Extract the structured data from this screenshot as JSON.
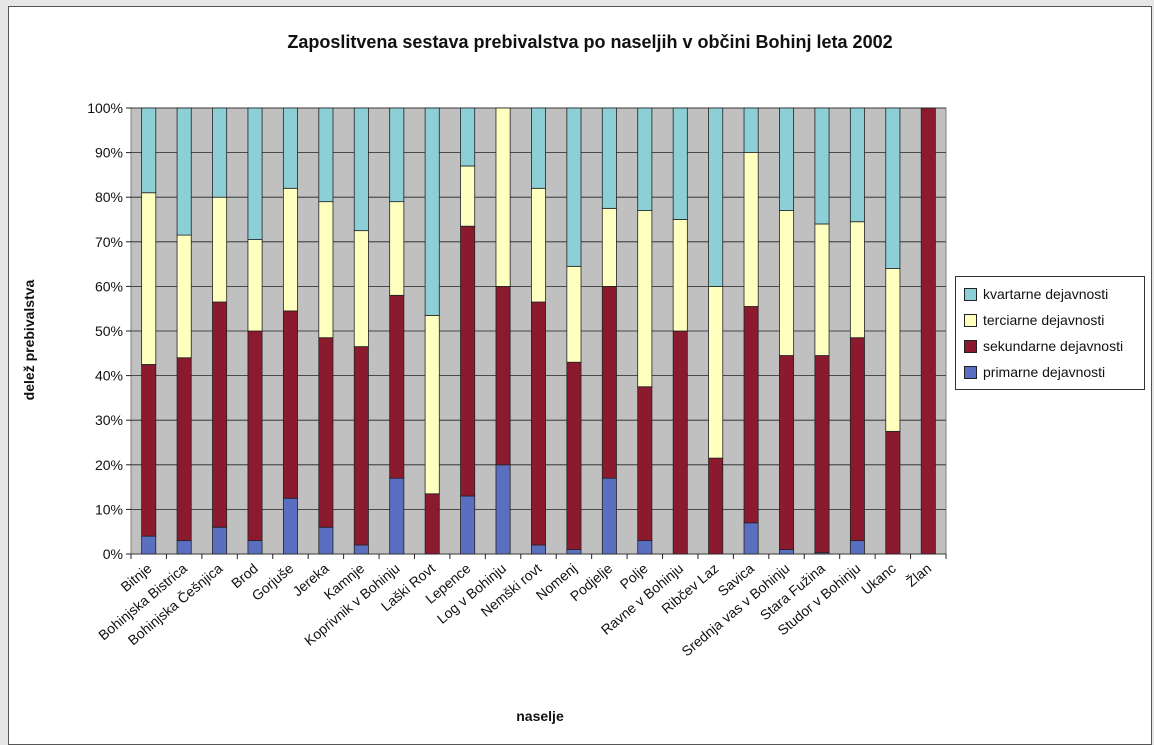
{
  "chart_data": {
    "type": "bar",
    "stacked": true,
    "percent_stacked": true,
    "title": "Zaposlitvena sestava prebivalstva po naseljih v občini Bohinj leta 2002",
    "xlabel": "naselje",
    "ylabel": "delež prebivalstva",
    "ylim": [
      0,
      100
    ],
    "yticks": [
      "0%",
      "10%",
      "20%",
      "30%",
      "40%",
      "50%",
      "60%",
      "70%",
      "80%",
      "90%",
      "100%"
    ],
    "grid": true,
    "legend_position": "right",
    "categories": [
      "Bitnje",
      "Bohinjska Bistrica",
      "Bohinjska Češnjica",
      "Brod",
      "Gorjuše",
      "Jereka",
      "Kamnje",
      "Koprivnik v Bohinju",
      "Laški Rovt",
      "Lepence",
      "Log v Bohinju",
      "Nemški rovt",
      "Nomenj",
      "Podjelje",
      "Polje",
      "Ravne v Bohinju",
      "Ribčev Laz",
      "Savica",
      "Srednja vas v Bohinju",
      "Stara Fužina",
      "Studor v Bohinju",
      "Ukanc",
      "Žlan"
    ],
    "series": [
      {
        "name": "primarne dejavnosti",
        "color": "#5b6fc0",
        "values": [
          4,
          3,
          6,
          3,
          12.5,
          6,
          2,
          17,
          0,
          13,
          20,
          2,
          1,
          17,
          3,
          0,
          0,
          7,
          1,
          0.3,
          3,
          0,
          0
        ]
      },
      {
        "name": "sekundarne dejavnosti",
        "color": "#8b1a2e",
        "values": [
          38.5,
          41,
          50.5,
          47,
          42,
          42.5,
          44.5,
          41,
          13.5,
          60.5,
          40,
          54.5,
          42,
          43,
          34.5,
          50,
          21.5,
          48.5,
          43.5,
          44.2,
          45.5,
          27.5,
          100
        ]
      },
      {
        "name": "terciarne dejavnosti",
        "color": "#ffffc0",
        "values": [
          38.5,
          27.5,
          23.5,
          20.5,
          27.5,
          30.5,
          26,
          21,
          40,
          13.5,
          40,
          25.5,
          21.5,
          17.5,
          39.5,
          25,
          38.5,
          34.5,
          32.5,
          29.5,
          26,
          36.5,
          0
        ]
      },
      {
        "name": "kvartarne dejavnosti",
        "color": "#8ccfd6",
        "values": [
          19,
          28.5,
          20,
          29.5,
          18,
          21,
          27.5,
          21,
          46.5,
          13,
          0,
          18,
          35.5,
          22.5,
          23,
          25,
          40,
          10,
          23,
          26,
          25.5,
          36,
          0
        ]
      }
    ]
  }
}
